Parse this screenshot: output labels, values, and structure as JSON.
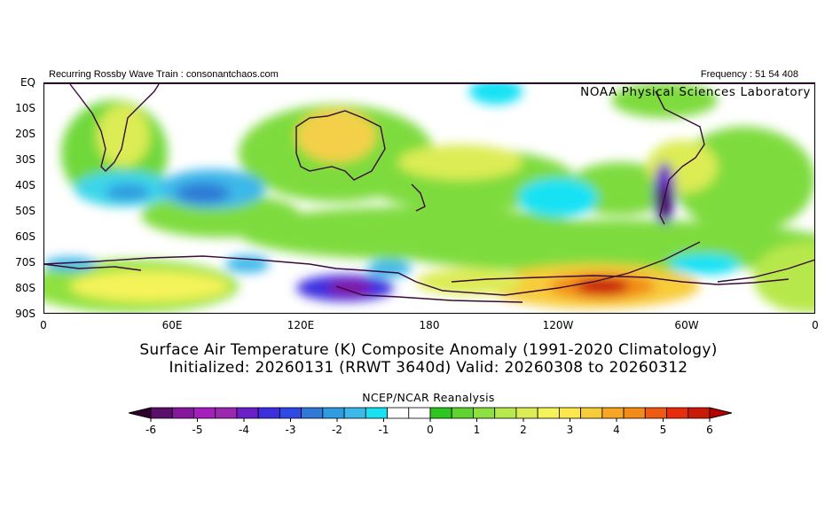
{
  "header": {
    "left_text": "Recurring Rossby Wave Train : consonantchaos.com",
    "right_text": "Frequency : 51 54 408",
    "lab_label": "NOAA Physical Sciences Laboratory"
  },
  "axes": {
    "y_labels": [
      "EQ",
      "10S",
      "20S",
      "30S",
      "40S",
      "50S",
      "60S",
      "70S",
      "80S",
      "90S"
    ],
    "x_labels": [
      "0",
      "60E",
      "120E",
      "180",
      "120W",
      "60W",
      "0"
    ]
  },
  "title": {
    "line1": "Surface Air Temperature (K) Composite Anomaly (1991-2020 Climatology)",
    "line2": "Initialized: 20260131 (RRWT 3640d) Valid: 20260308 to 20260312"
  },
  "source": "NCEP/NCAR Reanalysis",
  "colorbar": {
    "tick_labels": [
      "-6",
      "-5",
      "-4",
      "-3",
      "-2",
      "-1",
      "0",
      "1",
      "2",
      "3",
      "4",
      "5",
      "6"
    ],
    "colors": [
      "#30002e",
      "#5a0f6b",
      "#86169b",
      "#a61ebd",
      "#9c27b0",
      "#6a1fc9",
      "#3d2ee0",
      "#2f49e6",
      "#2f7ad6",
      "#2f9be0",
      "#3cb8ea",
      "#16e2f4",
      "#ffffff",
      "#ffffff",
      "#2ec51f",
      "#5fd430",
      "#8ee13f",
      "#b7e84c",
      "#dcec55",
      "#f4f35a",
      "#fde84b",
      "#f7cc3a",
      "#f6a623",
      "#f28c19",
      "#ee5a12",
      "#e82d0d",
      "#c91b08",
      "#b80000"
    ]
  },
  "chart_data": {
    "type": "heatmap",
    "variable": "Surface Air Temperature (K) Composite Anomaly",
    "x_range_deg": [
      0,
      360
    ],
    "y_range_deg": [
      0,
      -90
    ],
    "value_range": [
      -6,
      6
    ],
    "anomaly_regions": [
      {
        "name": "Antarctic Amundsen Sea warm anomaly",
        "lon": 225,
        "lat": -80,
        "value": 5.5
      },
      {
        "name": "Ross Sea cold anomaly",
        "lon": 145,
        "lat": -80,
        "value": -3.5
      },
      {
        "name": "Southern South America cold anomaly",
        "lon": 290,
        "lat": -42,
        "value": -4
      },
      {
        "name": "Indian Ocean cold anomaly",
        "lon": 60,
        "lat": -42,
        "value": -2
      },
      {
        "name": "Australia warm anomaly",
        "lon": 135,
        "lat": -22,
        "value": 2.5
      },
      {
        "name": "Southern Africa warm anomaly",
        "lon": 25,
        "lat": -22,
        "value": 2.5
      }
    ]
  }
}
